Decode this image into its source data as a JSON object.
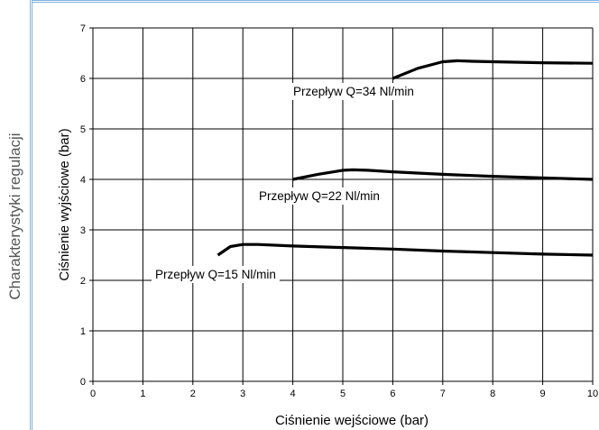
{
  "sidebar": {
    "title": "Charakterystyki regulacji"
  },
  "colors": {
    "accent": "#7fb2dc",
    "side_text": "#555555",
    "line": "#000000",
    "grid": "#000000"
  },
  "chart_data": {
    "type": "line",
    "title": "",
    "xlabel": "Ciśnienie wejściowe (bar)",
    "ylabel": "Ciśnienie wyjściowe  (bar)",
    "xlim": [
      0,
      10
    ],
    "ylim": [
      0,
      7
    ],
    "xticks": [
      0,
      1,
      2,
      3,
      4,
      5,
      6,
      7,
      8,
      9,
      10
    ],
    "yticks": [
      0,
      1,
      2,
      3,
      4,
      5,
      6,
      7
    ],
    "grid": true,
    "series": [
      {
        "name": "Przepływ Q=15 Nl/min",
        "x": [
          2.5,
          2.75,
          3.0,
          3.3,
          4.0,
          5.0,
          6.0,
          7.0,
          8.0,
          9.0,
          10.0
        ],
        "y": [
          2.5,
          2.67,
          2.71,
          2.71,
          2.68,
          2.65,
          2.62,
          2.58,
          2.55,
          2.52,
          2.5
        ]
      },
      {
        "name": "Przepływ Q=22 Nl/min",
        "x": [
          4.0,
          4.5,
          5.0,
          5.2,
          5.5,
          6.0,
          7.0,
          8.0,
          9.0,
          10.0
        ],
        "y": [
          4.0,
          4.1,
          4.18,
          4.19,
          4.18,
          4.15,
          4.1,
          4.06,
          4.03,
          4.0
        ]
      },
      {
        "name": "Przepływ Q=34 Nl/min",
        "x": [
          6.0,
          6.5,
          7.0,
          7.3,
          7.6,
          8.0,
          9.0,
          10.0
        ],
        "y": [
          6.0,
          6.2,
          6.33,
          6.35,
          6.34,
          6.33,
          6.31,
          6.3
        ]
      }
    ]
  }
}
